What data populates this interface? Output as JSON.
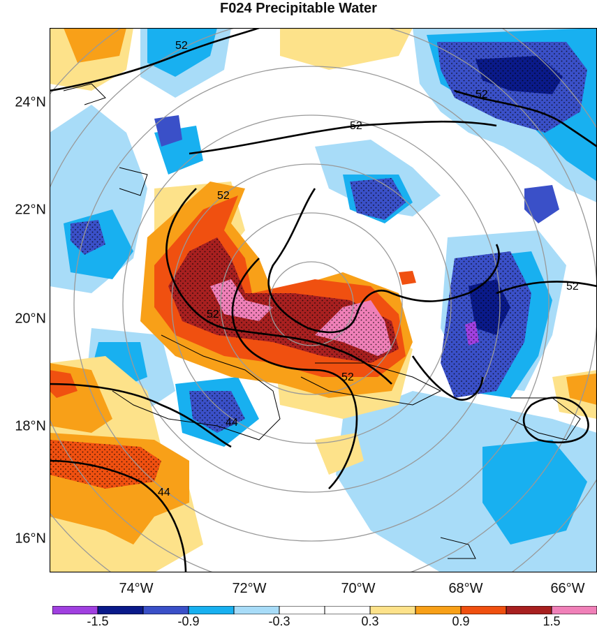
{
  "title": "F024 Precipitable Water",
  "lat_labels": [
    "24°N",
    "22°N",
    "20°N",
    "18°N",
    "16°N"
  ],
  "lon_labels": [
    "74°W",
    "72°W",
    "70°W",
    "68°W",
    "66°W"
  ],
  "contour_labels": [
    "52",
    "52",
    "52",
    "52",
    "52",
    "52",
    "52",
    "44",
    "44"
  ],
  "colorbar": {
    "colors": [
      "#a040e0",
      "#0a1a8a",
      "#3a50c8",
      "#18b0f0",
      "#a8dcf8",
      "#ffffff",
      "#ffffff",
      "#fde28a",
      "#f8a018",
      "#f05010",
      "#a82020",
      "#f080b8"
    ],
    "labels": [
      "-1.5",
      "-0.9",
      "-0.3",
      "0.3",
      "0.9",
      "1.5"
    ]
  }
}
